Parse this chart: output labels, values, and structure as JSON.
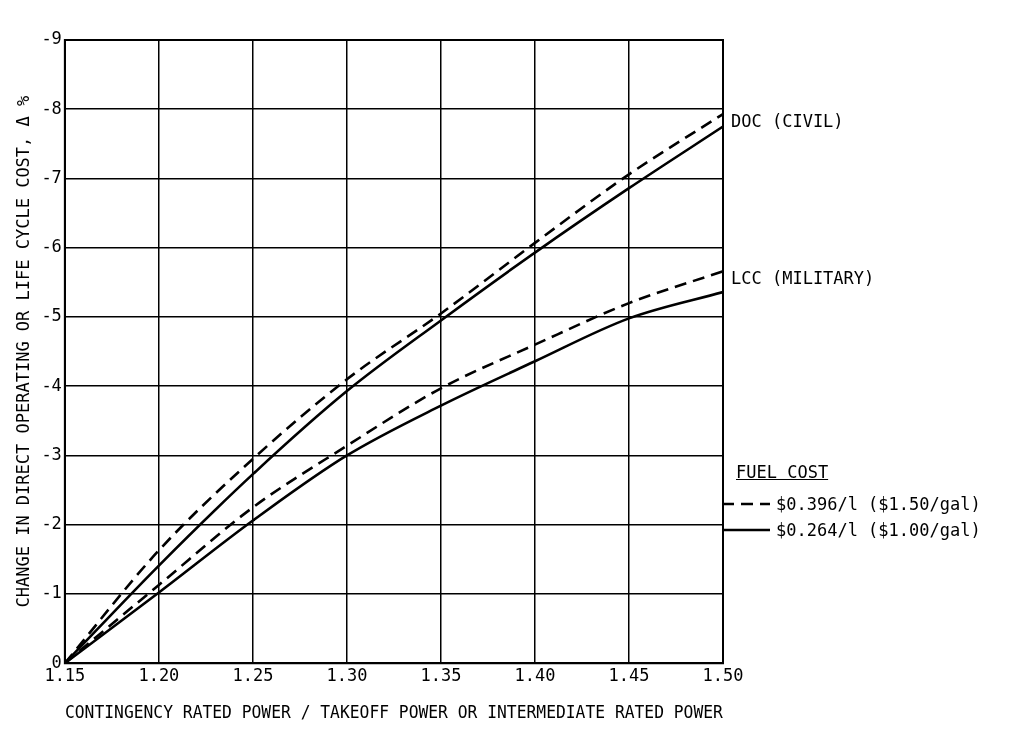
{
  "chart_data": {
    "type": "line",
    "xlabel": "CONTINGENCY RATED POWER / TAKEOFF POWER OR INTERMEDIATE RATED POWER",
    "ylabel": "CHANGE IN DIRECT OPERATING OR LIFE CYCLE COST, Δ %",
    "x": [
      1.15,
      1.2,
      1.25,
      1.3,
      1.35,
      1.4,
      1.45,
      1.5
    ],
    "xlim": [
      1.15,
      1.5
    ],
    "xticks": [
      1.15,
      {
        "value": 1.2,
        "label": "1.20"
      },
      1.25,
      {
        "value": 1.3,
        "label": "1.30"
      },
      1.35,
      {
        "value": 1.4,
        "label": "1.40"
      },
      1.45,
      {
        "value": 1.5,
        "label": "1.50"
      }
    ],
    "ylim": [
      0,
      -9
    ],
    "yticks": [
      0,
      -1,
      -2,
      -3,
      -4,
      -5,
      -6,
      -7,
      -8,
      -9
    ],
    "grid": true,
    "legend": "right",
    "legend_title": "FUEL COST",
    "marker": "none",
    "series": [
      {
        "name": "$0.396/l ($1.50/gal)",
        "color": "#000000",
        "line_style": "dashed",
        "values": [
          0,
          -1.63,
          -2.95,
          -4.1,
          -5.05,
          -6.07,
          -7.06,
          -7.93
        ]
      },
      {
        "name": "$0.264/l ($1.00/gal)",
        "color": "#000000",
        "line_style": "solid",
        "values": [
          0,
          -1.41,
          -2.73,
          -3.93,
          -4.95,
          -5.93,
          -6.86,
          -7.75
        ]
      },
      {
        "color": "#000000",
        "line_style": "dashed",
        "values": [
          0,
          -1.13,
          -2.25,
          -3.14,
          -3.97,
          -4.6,
          -5.2,
          -5.66
        ]
      },
      {
        "color": "#000000",
        "line_style": "solid",
        "values": [
          0,
          -1.02,
          -2.06,
          -3.0,
          -3.72,
          -4.36,
          -4.98,
          -5.36
        ]
      }
    ],
    "annotations": [
      {
        "text": "DOC (CIVIL)",
        "x": 1.5,
        "y": -7.93
      },
      {
        "text": "LCC (MILITARY)",
        "x": 1.5,
        "y": -5.66
      }
    ]
  }
}
